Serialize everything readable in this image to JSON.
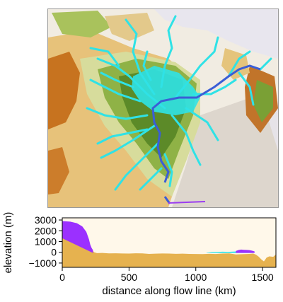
{
  "map": {
    "description_free": true,
    "colors": {
      "background": "#f3efe6",
      "lowland_dark": "#c26a1b",
      "lowland": "#e9c47a",
      "midland": "#c6d49a",
      "upland": "#7fa33a",
      "highland": "#4f7d22",
      "ocean": "#e9e7ee",
      "ice_grey": "#d9d4cc",
      "drainage": "#29e3e8",
      "flow_line": "#3c5fd8",
      "marker": "#9b3df0"
    }
  },
  "chart_data": {
    "type": "area",
    "xlabel": "distance along flow line (km)",
    "ylabel": "elevation (m)",
    "xlim": [
      0,
      1600
    ],
    "ylim": [
      -1400,
      3200
    ],
    "x_ticks": [
      0,
      500,
      1000,
      1500
    ],
    "x_tick_labels": [
      "0",
      "500",
      "1000",
      "1500"
    ],
    "y_ticks": [
      -1000,
      0,
      1000,
      2000,
      3000
    ],
    "y_tick_labels": [
      "−1000",
      "0",
      "1000",
      "2000",
      "3000"
    ],
    "series": [
      {
        "color": "#9b30ff",
        "x": [
          0,
          60,
          110,
          150,
          180,
          200,
          210,
          220,
          230
        ],
        "y": [
          2900,
          2850,
          2700,
          2400,
          1900,
          1200,
          700,
          400,
          200
        ]
      },
      {
        "color": "#e6b24f",
        "x": [
          0,
          20,
          40,
          60,
          80,
          100,
          120,
          140,
          160,
          180,
          200,
          220,
          240,
          260,
          300,
          350,
          400,
          450,
          500,
          550,
          600,
          650,
          700,
          750,
          800,
          850,
          900,
          950,
          1000,
          1050,
          1100,
          1150,
          1200,
          1250,
          1300,
          1350,
          1400,
          1430,
          1450,
          1470,
          1490,
          1510,
          1530,
          1550,
          1580,
          1600
        ],
        "y": [
          1400,
          1300,
          1350,
          1200,
          1100,
          1000,
          900,
          800,
          750,
          600,
          400,
          250,
          0,
          -80,
          -60,
          -100,
          -90,
          -110,
          -120,
          -90,
          -100,
          -150,
          -130,
          -110,
          -120,
          -140,
          -130,
          -150,
          -160,
          -170,
          -140,
          -160,
          -120,
          -100,
          -200,
          -180,
          -150,
          -120,
          -220,
          -400,
          -650,
          -850,
          -500,
          -380,
          -420,
          -200
        ]
      },
      {
        "color": "#29e3e8",
        "x": [
          1080,
          1120,
          1160,
          1200,
          1240,
          1280,
          1320,
          1360,
          1400,
          1430
        ],
        "y": [
          -40,
          20,
          30,
          50,
          40,
          60,
          80,
          70,
          40,
          0
        ]
      },
      {
        "color": "#9b30ff",
        "x": [
          1300,
          1320,
          1340,
          1360,
          1380,
          1400,
          1420,
          1440
        ],
        "y": [
          120,
          210,
          250,
          230,
          220,
          200,
          150,
          80
        ]
      }
    ]
  }
}
